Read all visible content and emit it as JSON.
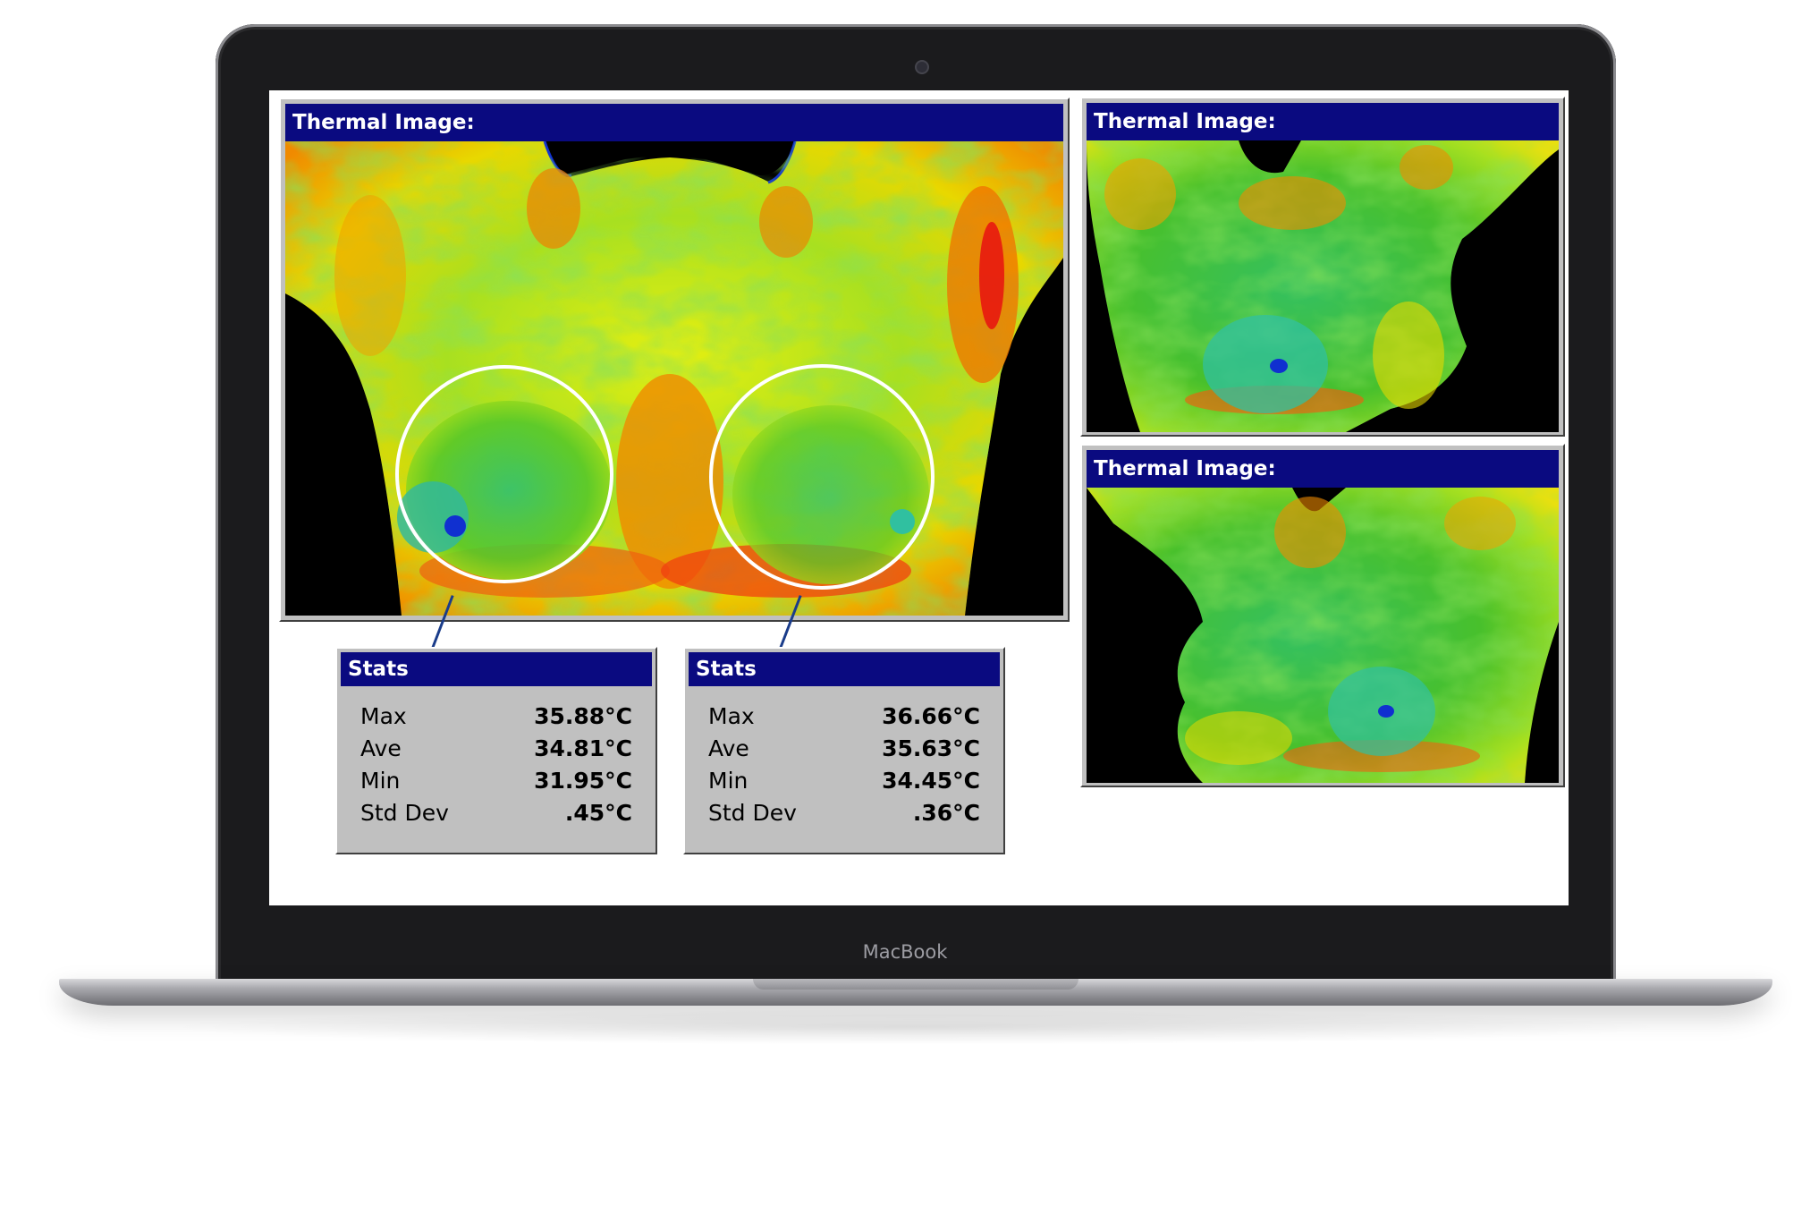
{
  "device": {
    "brand_label": "MacBook"
  },
  "views": [
    {
      "id": "front",
      "title": "Thermal Image:"
    },
    {
      "id": "right-oblique",
      "title": "Thermal Image:"
    },
    {
      "id": "left-oblique",
      "title": "Thermal Image:"
    }
  ],
  "stats": [
    {
      "title": "Stats",
      "rows": [
        {
          "label": "Max",
          "value": "35.88°C"
        },
        {
          "label": "Ave",
          "value": "34.81°C"
        },
        {
          "label": "Min",
          "value": "31.95°C"
        },
        {
          "label": "Std Dev",
          "value": ".45°C"
        }
      ]
    },
    {
      "title": "Stats",
      "rows": [
        {
          "label": "Max",
          "value": "36.66°C"
        },
        {
          "label": "Ave",
          "value": "35.63°C"
        },
        {
          "label": "Min",
          "value": "34.45°C"
        },
        {
          "label": "Std Dev",
          "value": ".36°C"
        }
      ]
    }
  ],
  "colors": {
    "titlebar": "#0a0a80",
    "panel_face": "#c0c0c0",
    "thermal_cold": "#1030d0",
    "thermal_cool": "#20c0a0",
    "thermal_mid": "#40c020",
    "thermal_warm": "#e8f000",
    "thermal_hot": "#f08000",
    "thermal_hottest": "#e81010",
    "roi_circle": "#ffffff",
    "leader_line": "#1a3c8a"
  }
}
